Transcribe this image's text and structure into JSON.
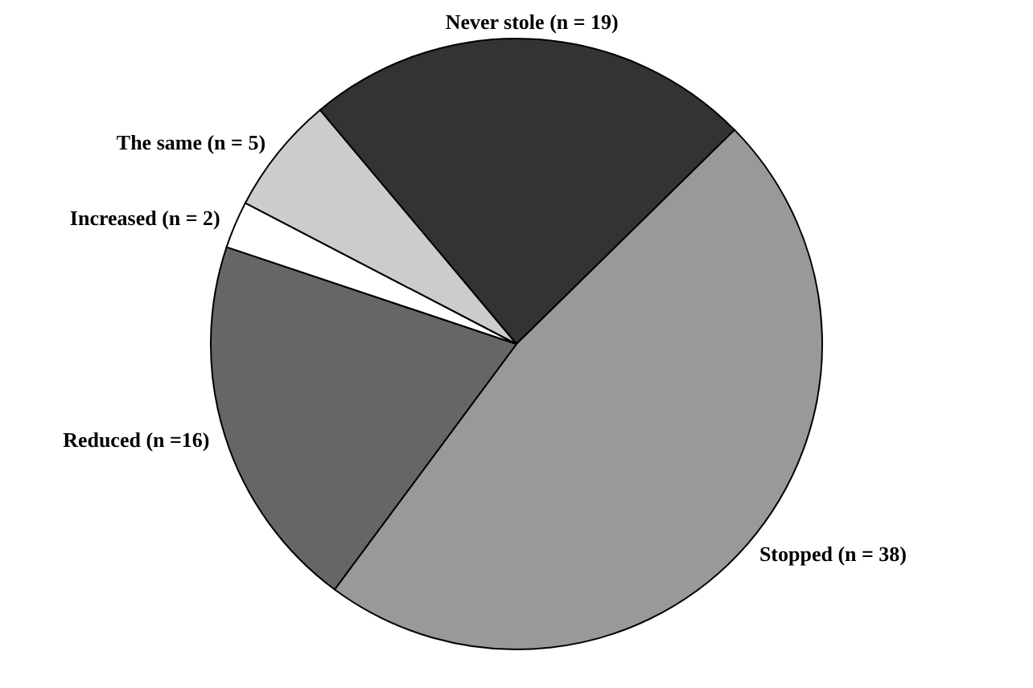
{
  "chart_data": {
    "type": "pie",
    "categories": [
      "Never stole (n = 19)",
      "Stopped (n = 38)",
      "Reduced (n =16)",
      "Increased (n = 2)",
      "The same (n = 5)"
    ],
    "values": [
      19,
      38,
      16,
      2,
      5
    ],
    "colors": [
      "#333333",
      "#999999",
      "#666666",
      "#ffffff",
      "#cccccc"
    ]
  }
}
